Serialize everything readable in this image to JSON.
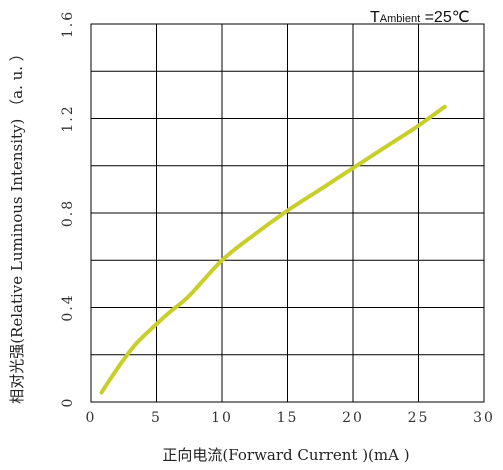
{
  "chart_data": {
    "type": "line",
    "xlabel": "正向电流(Forward  Current )(mA )",
    "ylabel": "相对光强(Relative Luminous  Intensity) （a. u. ）",
    "xlim": [
      0,
      30
    ],
    "ylim": [
      0,
      1.6
    ],
    "x_ticks": [
      "0",
      "5",
      "10",
      "15",
      "20",
      "25",
      "30"
    ],
    "y_ticks": [
      "0",
      "0.4",
      "0.8",
      "1.2",
      "1.6"
    ],
    "grid": true,
    "annotation": {
      "prefix": "T",
      "subscript": "Ambient",
      "suffix": " =25℃"
    },
    "series": [
      {
        "color": "#c9cf2a",
        "x": [
          0.8,
          1.5,
          2.5,
          3.5,
          5,
          6,
          7.5,
          10,
          12.5,
          15,
          17.5,
          20,
          22.5,
          25,
          27
        ],
        "y": [
          0.04,
          0.1,
          0.18,
          0.25,
          0.33,
          0.38,
          0.45,
          0.6,
          0.71,
          0.81,
          0.9,
          0.99,
          1.08,
          1.17,
          1.25
        ]
      }
    ]
  }
}
